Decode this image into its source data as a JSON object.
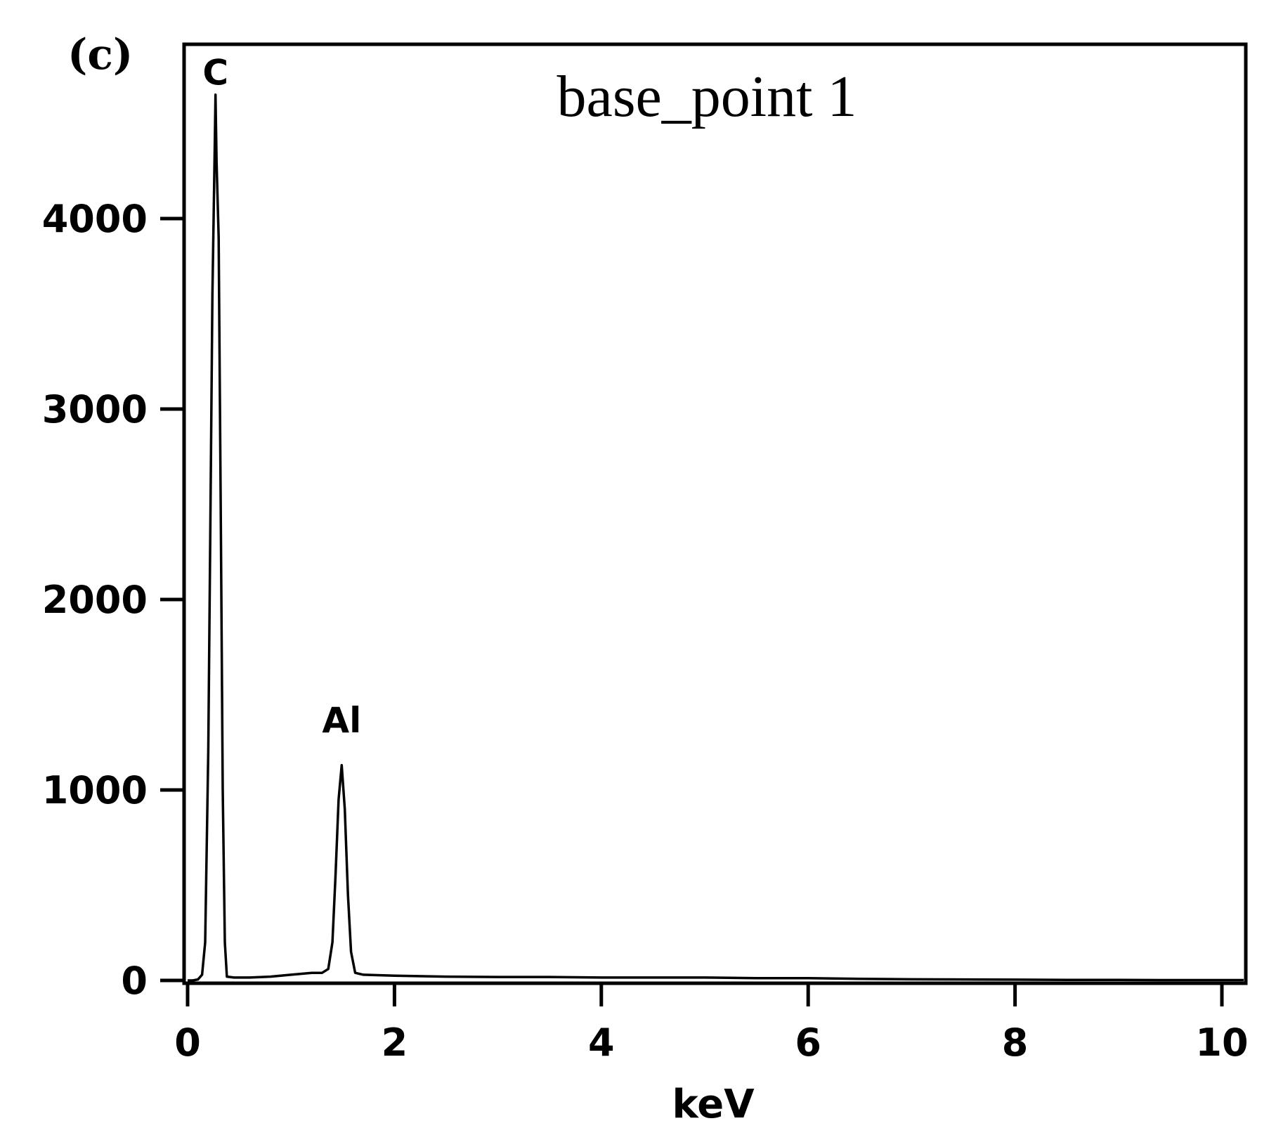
{
  "chart_data": {
    "type": "line",
    "panel_label": "(c)",
    "title": "base_point 1",
    "xlabel": "keV",
    "ylabel": "",
    "xlim": [
      0,
      10.25
    ],
    "ylim": [
      0,
      5000
    ],
    "x_ticks": [
      0,
      2,
      4,
      6,
      8,
      10
    ],
    "x_tick_labels": [
      "0",
      "2",
      "4",
      "6",
      "8",
      "10"
    ],
    "y_ticks": [
      0,
      1000,
      2000,
      3000,
      4000
    ],
    "y_tick_labels": [
      "0",
      "1000",
      "2000",
      "3000",
      "4000"
    ],
    "grid": false,
    "annotations": [
      {
        "text": "C",
        "x": 0.27,
        "y": 4600
      },
      {
        "text": "Al",
        "x": 1.49,
        "y": 1200
      }
    ],
    "series": [
      {
        "points": [
          [
            0.0,
            0
          ],
          [
            0.05,
            0
          ],
          [
            0.1,
            5
          ],
          [
            0.14,
            30
          ],
          [
            0.17,
            200
          ],
          [
            0.2,
            1200
          ],
          [
            0.22,
            2400
          ],
          [
            0.24,
            3600
          ],
          [
            0.26,
            4300
          ],
          [
            0.27,
            4650
          ],
          [
            0.28,
            4300
          ],
          [
            0.3,
            3900
          ],
          [
            0.32,
            2500
          ],
          [
            0.34,
            1000
          ],
          [
            0.36,
            200
          ],
          [
            0.38,
            20
          ],
          [
            0.45,
            15
          ],
          [
            0.6,
            15
          ],
          [
            0.8,
            20
          ],
          [
            1.0,
            30
          ],
          [
            1.2,
            40
          ],
          [
            1.3,
            40
          ],
          [
            1.36,
            60
          ],
          [
            1.4,
            200
          ],
          [
            1.43,
            550
          ],
          [
            1.46,
            950
          ],
          [
            1.49,
            1130
          ],
          [
            1.52,
            900
          ],
          [
            1.55,
            450
          ],
          [
            1.58,
            150
          ],
          [
            1.62,
            40
          ],
          [
            1.7,
            30
          ],
          [
            2.0,
            25
          ],
          [
            2.5,
            20
          ],
          [
            3.0,
            18
          ],
          [
            3.5,
            18
          ],
          [
            4.0,
            15
          ],
          [
            4.5,
            15
          ],
          [
            5.0,
            15
          ],
          [
            5.5,
            12
          ],
          [
            6.0,
            12
          ],
          [
            6.5,
            8
          ],
          [
            7.0,
            6
          ],
          [
            7.5,
            5
          ],
          [
            8.0,
            4
          ],
          [
            8.5,
            3
          ],
          [
            9.0,
            3
          ],
          [
            9.5,
            2
          ],
          [
            10.0,
            2
          ],
          [
            10.25,
            2
          ]
        ]
      }
    ]
  }
}
